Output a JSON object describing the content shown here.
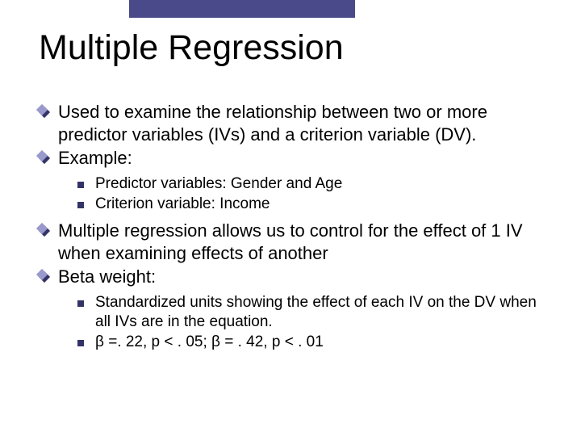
{
  "colors": {
    "top_bar": "#4a4a8a",
    "text": "#000000",
    "diamond_back": "#333366",
    "diamond_front": "#9999cc",
    "square_bullet": "#333366",
    "background": "#ffffff"
  },
  "typography": {
    "title_fontsize": 43,
    "level1_fontsize": 22,
    "level2_fontsize": 19,
    "font_family": "Verdana, Geneva, sans-serif"
  },
  "title": "Multiple Regression",
  "bullets": {
    "b1": "Used to examine the relationship between two or more predictor variables (IVs) and a criterion variable (DV).",
    "b2": "Example:",
    "b2_1": "Predictor variables: Gender and Age",
    "b2_2": "Criterion variable: Income",
    "b3": "Multiple regression allows us to control for the effect of 1 IV when examining effects of another",
    "b4": "Beta weight:",
    "b4_1": "Standardized units showing the effect of each IV on the DV when all IVs are in the equation.",
    "b4_2": "β =. 22, p < . 05;  β = . 42, p < . 01"
  }
}
